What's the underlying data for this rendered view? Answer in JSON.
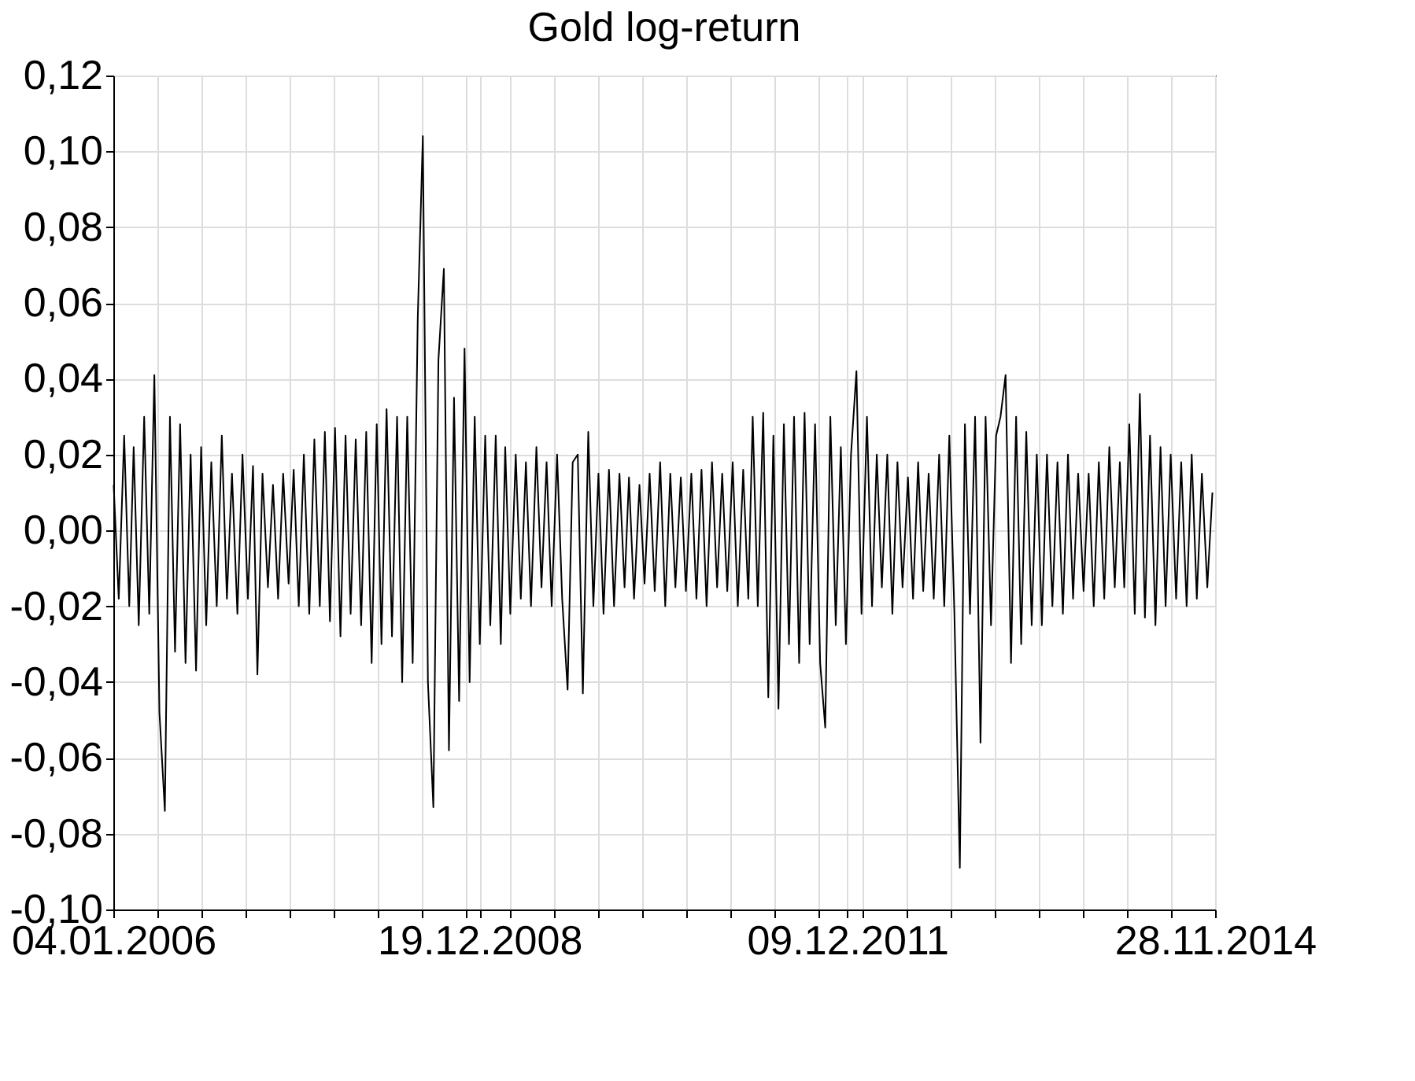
{
  "chart_data": {
    "type": "line",
    "title": "Gold log-return",
    "color": "#000000",
    "grid": true,
    "line_style": "solid",
    "x": [
      "2006-01-05",
      "2006-01-20",
      "2006-02-05",
      "2006-02-20",
      "2006-03-05",
      "2006-03-20",
      "2006-04-05",
      "2006-04-20",
      "2006-05-05",
      "2006-05-20",
      "2006-06-05",
      "2006-06-20",
      "2006-07-05",
      "2006-07-20",
      "2006-08-05",
      "2006-08-20",
      "2006-09-05",
      "2006-09-20",
      "2006-10-05",
      "2006-10-20",
      "2006-11-05",
      "2006-11-20",
      "2006-12-05",
      "2006-12-20",
      "2007-01-05",
      "2007-01-20",
      "2007-02-05",
      "2007-02-20",
      "2007-03-05",
      "2007-03-20",
      "2007-04-05",
      "2007-04-20",
      "2007-05-05",
      "2007-05-20",
      "2007-06-05",
      "2007-06-20",
      "2007-07-05",
      "2007-07-20",
      "2007-08-05",
      "2007-08-20",
      "2007-09-05",
      "2007-09-20",
      "2007-10-05",
      "2007-10-20",
      "2007-11-05",
      "2007-11-20",
      "2007-12-05",
      "2007-12-20",
      "2008-01-05",
      "2008-01-20",
      "2008-02-05",
      "2008-02-20",
      "2008-03-05",
      "2008-03-20",
      "2008-04-05",
      "2008-04-20",
      "2008-05-05",
      "2008-05-20",
      "2008-06-05",
      "2008-06-20",
      "2008-07-05",
      "2008-07-20",
      "2008-08-05",
      "2008-08-20",
      "2008-09-05",
      "2008-09-20",
      "2008-10-05",
      "2008-10-20",
      "2008-11-05",
      "2008-11-20",
      "2008-12-05",
      "2008-12-20",
      "2009-01-05",
      "2009-01-20",
      "2009-02-05",
      "2009-02-20",
      "2009-03-05",
      "2009-03-20",
      "2009-04-05",
      "2009-04-20",
      "2009-05-05",
      "2009-05-20",
      "2009-06-05",
      "2009-06-20",
      "2009-07-05",
      "2009-07-20",
      "2009-08-05",
      "2009-08-20",
      "2009-09-05",
      "2009-09-20",
      "2009-10-05",
      "2009-10-20",
      "2009-11-05",
      "2009-11-20",
      "2009-12-05",
      "2009-12-20",
      "2010-01-05",
      "2010-01-20",
      "2010-02-05",
      "2010-02-20",
      "2010-03-05",
      "2010-03-20",
      "2010-04-05",
      "2010-04-20",
      "2010-05-05",
      "2010-05-20",
      "2010-06-05",
      "2010-06-20",
      "2010-07-05",
      "2010-07-20",
      "2010-08-05",
      "2010-08-20",
      "2010-09-05",
      "2010-09-20",
      "2010-10-05",
      "2010-10-20",
      "2010-11-05",
      "2010-11-20",
      "2010-12-05",
      "2010-12-20",
      "2011-01-05",
      "2011-01-20",
      "2011-02-05",
      "2011-02-20",
      "2011-03-05",
      "2011-03-20",
      "2011-04-05",
      "2011-04-20",
      "2011-05-05",
      "2011-05-20",
      "2011-06-05",
      "2011-06-20",
      "2011-07-05",
      "2011-07-20",
      "2011-08-05",
      "2011-08-20",
      "2011-09-05",
      "2011-09-20",
      "2011-10-05",
      "2011-10-20",
      "2011-11-05",
      "2011-11-20",
      "2011-12-05",
      "2011-12-20",
      "2012-01-05",
      "2012-01-20",
      "2012-02-05",
      "2012-02-20",
      "2012-03-05",
      "2012-03-20",
      "2012-04-05",
      "2012-04-20",
      "2012-05-05",
      "2012-05-20",
      "2012-06-05",
      "2012-06-20",
      "2012-07-05",
      "2012-07-20",
      "2012-08-05",
      "2012-08-20",
      "2012-09-05",
      "2012-09-20",
      "2012-10-05",
      "2012-10-20",
      "2012-11-05",
      "2012-11-20",
      "2012-12-05",
      "2012-12-20",
      "2013-01-05",
      "2013-01-20",
      "2013-02-05",
      "2013-02-20",
      "2013-03-05",
      "2013-03-20",
      "2013-04-05",
      "2013-04-20",
      "2013-05-05",
      "2013-05-20",
      "2013-06-05",
      "2013-06-20",
      "2013-07-05",
      "2013-07-20",
      "2013-08-05",
      "2013-08-20",
      "2013-09-05",
      "2013-09-20",
      "2013-10-05",
      "2013-10-20",
      "2013-11-05",
      "2013-11-20",
      "2013-12-05",
      "2013-12-20",
      "2014-01-05",
      "2014-01-20",
      "2014-02-05",
      "2014-02-20",
      "2014-03-05",
      "2014-03-20",
      "2014-04-05",
      "2014-04-20",
      "2014-05-05",
      "2014-05-20",
      "2014-06-05",
      "2014-06-20",
      "2014-07-05",
      "2014-07-20",
      "2014-08-05",
      "2014-08-20",
      "2014-09-05",
      "2014-09-20",
      "2014-10-05",
      "2014-10-20",
      "2014-11-05",
      "2014-11-20"
    ],
    "values": [
      0.012,
      -0.018,
      0.025,
      -0.02,
      0.022,
      -0.025,
      0.03,
      -0.022,
      0.041,
      -0.048,
      -0.074,
      0.03,
      -0.032,
      0.028,
      -0.035,
      0.02,
      -0.037,
      0.022,
      -0.025,
      0.018,
      -0.02,
      0.025,
      -0.018,
      0.015,
      -0.022,
      0.02,
      -0.018,
      0.017,
      -0.038,
      0.015,
      -0.015,
      0.012,
      -0.018,
      0.015,
      -0.014,
      0.016,
      -0.02,
      0.02,
      -0.022,
      0.024,
      -0.02,
      0.026,
      -0.024,
      0.027,
      -0.028,
      0.025,
      -0.022,
      0.024,
      -0.025,
      0.026,
      -0.035,
      0.028,
      -0.03,
      0.032,
      -0.028,
      0.03,
      -0.04,
      0.03,
      -0.035,
      0.056,
      0.104,
      -0.04,
      -0.073,
      0.045,
      0.069,
      -0.058,
      0.035,
      -0.045,
      0.048,
      -0.04,
      0.03,
      -0.03,
      0.025,
      -0.025,
      0.025,
      -0.03,
      0.022,
      -0.022,
      0.02,
      -0.018,
      0.018,
      -0.02,
      0.022,
      -0.015,
      0.018,
      -0.02,
      0.02,
      -0.018,
      -0.042,
      0.018,
      0.02,
      -0.043,
      0.026,
      -0.02,
      0.015,
      -0.022,
      0.016,
      -0.02,
      0.015,
      -0.015,
      0.014,
      -0.018,
      0.012,
      -0.014,
      0.015,
      -0.016,
      0.018,
      -0.02,
      0.015,
      -0.015,
      0.014,
      -0.016,
      0.015,
      -0.018,
      0.016,
      -0.02,
      0.018,
      -0.015,
      0.015,
      -0.016,
      0.018,
      -0.02,
      0.016,
      -0.018,
      0.03,
      -0.02,
      0.031,
      -0.044,
      0.025,
      -0.047,
      0.028,
      -0.03,
      0.03,
      -0.035,
      0.031,
      -0.03,
      0.028,
      -0.035,
      -0.052,
      0.03,
      -0.025,
      0.022,
      -0.03,
      0.02,
      0.042,
      -0.022,
      0.03,
      -0.02,
      0.02,
      -0.015,
      0.02,
      -0.022,
      0.018,
      -0.015,
      0.014,
      -0.018,
      0.018,
      -0.016,
      0.015,
      -0.018,
      0.02,
      -0.02,
      0.025,
      -0.022,
      -0.089,
      0.028,
      -0.022,
      0.03,
      -0.056,
      0.03,
      -0.025,
      0.025,
      0.03,
      0.041,
      -0.035,
      0.03,
      -0.03,
      0.026,
      -0.025,
      0.02,
      -0.025,
      0.02,
      -0.02,
      0.018,
      -0.022,
      0.02,
      -0.018,
      0.015,
      -0.016,
      0.015,
      -0.02,
      0.018,
      -0.018,
      0.022,
      -0.015,
      0.018,
      -0.015,
      0.028,
      -0.022,
      0.036,
      -0.023,
      0.025,
      -0.025,
      0.022,
      -0.02,
      0.02,
      -0.018,
      0.018,
      -0.02,
      0.02,
      -0.018,
      0.015,
      -0.015,
      0.01
    ],
    "xlim": [
      "2006-01-04",
      "2014-11-28"
    ],
    "xticks": [
      {
        "value": "2006-01-04",
        "label": "04.01.2006"
      },
      {
        "value": "2006-05-14",
        "label": null
      },
      {
        "value": "2006-09-21",
        "label": null
      },
      {
        "value": "2007-01-29",
        "label": null
      },
      {
        "value": "2007-06-08",
        "label": null
      },
      {
        "value": "2007-10-16",
        "label": null
      },
      {
        "value": "2008-02-23",
        "label": null
      },
      {
        "value": "2008-07-02",
        "label": null
      },
      {
        "value": "2008-11-09",
        "label": null
      },
      {
        "value": "2008-12-19",
        "label": "19.12.2008"
      },
      {
        "value": "2009-03-19",
        "label": null
      },
      {
        "value": "2009-07-27",
        "label": null
      },
      {
        "value": "2009-12-04",
        "label": null
      },
      {
        "value": "2010-04-13",
        "label": null
      },
      {
        "value": "2010-08-21",
        "label": null
      },
      {
        "value": "2010-12-29",
        "label": null
      },
      {
        "value": "2011-05-08",
        "label": null
      },
      {
        "value": "2011-09-15",
        "label": null
      },
      {
        "value": "2011-12-09",
        "label": "09.12.2011"
      },
      {
        "value": "2012-01-23",
        "label": null
      },
      {
        "value": "2012-06-01",
        "label": null
      },
      {
        "value": "2012-10-09",
        "label": null
      },
      {
        "value": "2013-02-16",
        "label": null
      },
      {
        "value": "2013-06-26",
        "label": null
      },
      {
        "value": "2013-11-03",
        "label": null
      },
      {
        "value": "2014-03-13",
        "label": null
      },
      {
        "value": "2014-07-21",
        "label": null
      },
      {
        "value": "2014-11-28",
        "label": "28.11.2014"
      }
    ],
    "ylim": [
      -0.1,
      0.12
    ],
    "yticks": [
      {
        "value": -0.1,
        "label": "-0,10"
      },
      {
        "value": -0.08,
        "label": "-0,08"
      },
      {
        "value": -0.06,
        "label": "-0,06"
      },
      {
        "value": -0.04,
        "label": "-0,04"
      },
      {
        "value": -0.02,
        "label": "-0,02"
      },
      {
        "value": 0.0,
        "label": "0,00"
      },
      {
        "value": 0.02,
        "label": "0,02"
      },
      {
        "value": 0.04,
        "label": "0,04"
      },
      {
        "value": 0.06,
        "label": "0,06"
      },
      {
        "value": 0.08,
        "label": "0,08"
      },
      {
        "value": 0.1,
        "label": "0,10"
      },
      {
        "value": 0.12,
        "label": "0,12"
      }
    ]
  }
}
